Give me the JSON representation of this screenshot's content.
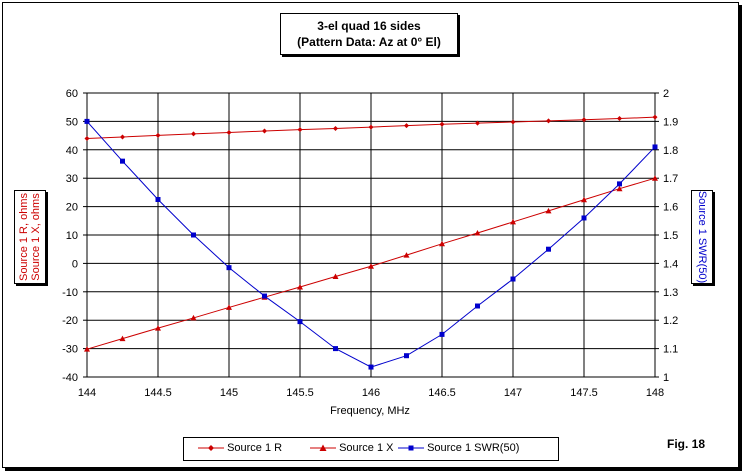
{
  "chart_data": {
    "type": "line",
    "title_line1": "3-el quad 16 sides",
    "title_line2": "(Pattern Data: Az at 0° El)",
    "xlabel": "Frequency, MHz",
    "ylabel_left_line1": "Source 1 R, ohms",
    "ylabel_left_line2": "Source 1 X, ohms",
    "ylabel_right": "Source 1 SWR(50)",
    "xlim": [
      144,
      148
    ],
    "ylim_left": [
      -40,
      60
    ],
    "ylim_right": [
      1,
      2
    ],
    "x_ticks": [
      "144",
      "144.5",
      "145",
      "145.5",
      "146",
      "146.5",
      "147",
      "147.5",
      "148"
    ],
    "y_left_ticks": [
      "60",
      "50",
      "40",
      "30",
      "20",
      "10",
      "0",
      "-10",
      "-20",
      "-30",
      "-40"
    ],
    "y_right_ticks": [
      "2",
      "1.9",
      "1.8",
      "1.7",
      "1.6",
      "1.5",
      "1.4",
      "1.3",
      "1.2",
      "1.1",
      "1"
    ],
    "grid": true,
    "legend_position": "bottom",
    "x": [
      144,
      144.25,
      144.5,
      144.75,
      145,
      145.25,
      145.5,
      145.75,
      146,
      146.25,
      146.5,
      146.75,
      147,
      147.25,
      147.5,
      147.75,
      148
    ],
    "series": [
      {
        "name": "Source 1 R",
        "axis": "left",
        "marker": "diamond",
        "color": "#cc0000",
        "values": [
          44.0,
          44.5,
          45.1,
          45.6,
          46.1,
          46.6,
          47.1,
          47.5,
          48.0,
          48.5,
          49.0,
          49.4,
          49.8,
          50.2,
          50.6,
          51.0,
          51.5
        ]
      },
      {
        "name": "Source 1 X",
        "axis": "left",
        "marker": "triangle",
        "color": "#cc0000",
        "values": [
          -30.2,
          -26.5,
          -22.8,
          -19.2,
          -15.5,
          -11.9,
          -8.3,
          -4.6,
          -1.0,
          2.9,
          6.9,
          10.7,
          14.6,
          18.5,
          22.4,
          26.3,
          30.0
        ]
      },
      {
        "name": "Source 1 SWR(50)",
        "axis": "right",
        "marker": "square",
        "color": "#0000cc",
        "values": [
          1.9,
          1.76,
          1.625,
          1.5,
          1.385,
          1.285,
          1.195,
          1.1,
          1.035,
          1.075,
          1.15,
          1.25,
          1.345,
          1.45,
          1.56,
          1.68,
          1.81
        ]
      }
    ]
  },
  "fig_label": "Fig. 18",
  "colors": {
    "red": "#cc0000",
    "blue": "#0000cc"
  }
}
